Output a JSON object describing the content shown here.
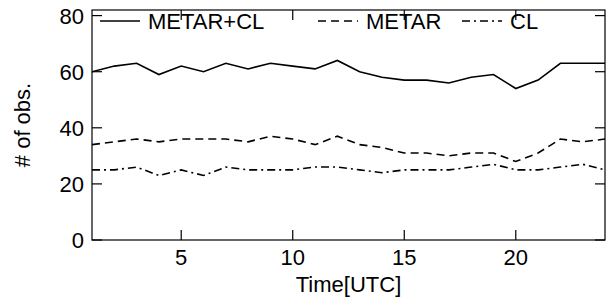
{
  "chart_data": {
    "type": "line",
    "x_label": "Time[UTC]",
    "y_label": "# of obs.",
    "x": [
      1,
      2,
      3,
      4,
      5,
      6,
      7,
      8,
      9,
      10,
      11,
      12,
      13,
      14,
      15,
      16,
      17,
      18,
      19,
      20,
      21,
      22,
      23,
      24
    ],
    "series": [
      {
        "name": "METAR+CL",
        "color": "#000000",
        "line_style": "solid",
        "values": [
          60,
          62,
          63,
          59,
          62,
          60,
          63,
          61,
          63,
          62,
          61,
          64,
          60,
          58,
          57,
          57,
          56,
          58,
          59,
          54,
          57,
          63,
          63,
          63
        ]
      },
      {
        "name": "METAR",
        "color": "#000000",
        "line_style": "dashed",
        "values": [
          34,
          35,
          36,
          35,
          36,
          36,
          36,
          35,
          37,
          36,
          34,
          37,
          34,
          33,
          31,
          31,
          30,
          31,
          31,
          28,
          31,
          36,
          35,
          36
        ]
      },
      {
        "name": "CL",
        "color": "#000000",
        "line_style": "dashdot",
        "values": [
          25,
          25,
          26,
          23,
          25,
          23,
          26,
          25,
          25,
          25,
          26,
          26,
          25,
          24,
          25,
          25,
          25,
          26,
          27,
          25,
          25,
          26,
          27,
          25
        ]
      }
    ],
    "xlim": [
      1,
      24
    ],
    "xticks": [
      5,
      10,
      15,
      20
    ],
    "ylim": [
      0,
      82
    ],
    "yticks": [
      0,
      20,
      40,
      60,
      80
    ],
    "legend": "top"
  }
}
